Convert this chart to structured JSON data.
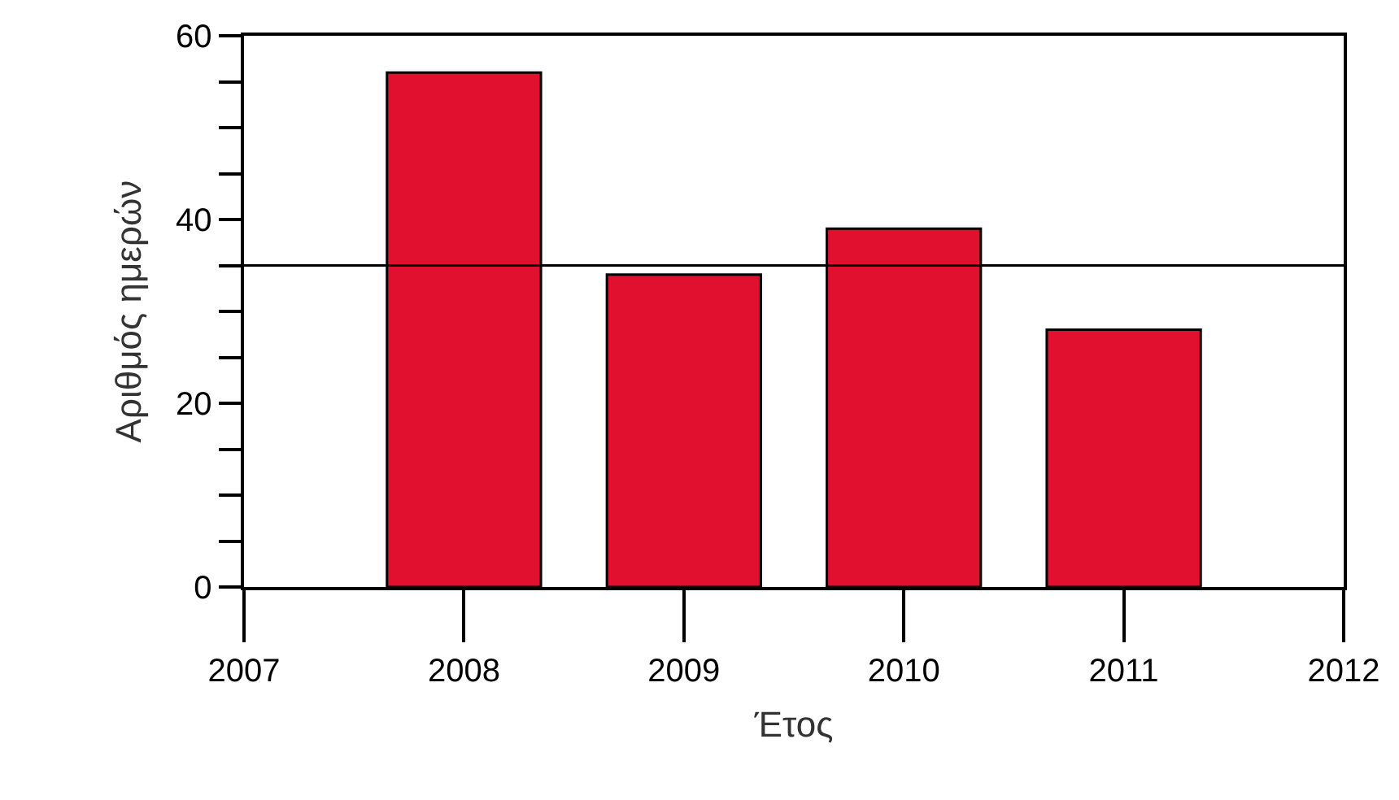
{
  "chart_data": {
    "type": "bar",
    "xlabel": "Έτος",
    "ylabel": "Αριθμός ημερών",
    "x": [
      2008,
      2009,
      2010,
      2011
    ],
    "values": [
      56,
      34,
      39,
      28
    ],
    "color": "#e0102e",
    "xlim": [
      2007,
      2012
    ],
    "xticks": [
      2007,
      2008,
      2009,
      2010,
      2011,
      2012
    ],
    "ylim": [
      0,
      60
    ],
    "yticks": [
      0,
      {
        "value": 5,
        "label": null
      },
      {
        "value": 10,
        "label": null
      },
      {
        "value": 15,
        "label": null
      },
      20,
      {
        "value": 25,
        "label": null
      },
      {
        "value": 30,
        "label": null
      },
      {
        "value": 35,
        "label": null
      },
      40,
      {
        "value": 45,
        "label": null
      },
      {
        "value": 50,
        "label": null
      },
      {
        "value": 55,
        "label": null
      },
      60
    ],
    "ref_lines": [
      {
        "axis": "y",
        "value": 35,
        "label": null,
        "color": "#000000"
      }
    ]
  }
}
